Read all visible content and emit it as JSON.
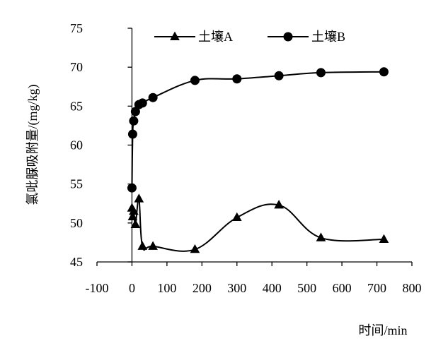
{
  "chart_data": {
    "type": "line",
    "title": "",
    "xlabel": "时间/min",
    "ylabel": "氯吡脲吸附量/(mg/kg)",
    "xlim": [
      -100,
      800
    ],
    "ylim": [
      45,
      75
    ],
    "xticks": [
      -100,
      0,
      100,
      200,
      300,
      400,
      500,
      600,
      700,
      800
    ],
    "yticks": [
      45,
      50,
      55,
      60,
      65,
      70,
      75
    ],
    "grid": false,
    "legend_position": "top",
    "series": [
      {
        "name": "土壤A",
        "marker": "triangle",
        "color": "#000000",
        "x": [
          0,
          2,
          5,
          10,
          20,
          30,
          60,
          180,
          300,
          420,
          540,
          720
        ],
        "y": [
          51.9,
          50.8,
          51.5,
          49.8,
          53.1,
          47.0,
          47.0,
          46.6,
          50.7,
          52.3,
          48.1,
          47.9
        ]
      },
      {
        "name": "土壤B",
        "marker": "circle",
        "color": "#000000",
        "x": [
          0,
          2,
          5,
          10,
          20,
          30,
          60,
          180,
          300,
          420,
          540,
          720
        ],
        "y": [
          54.5,
          61.4,
          63.1,
          64.3,
          65.2,
          65.4,
          66.1,
          68.3,
          68.5,
          68.9,
          69.3,
          69.4
        ]
      }
    ]
  }
}
